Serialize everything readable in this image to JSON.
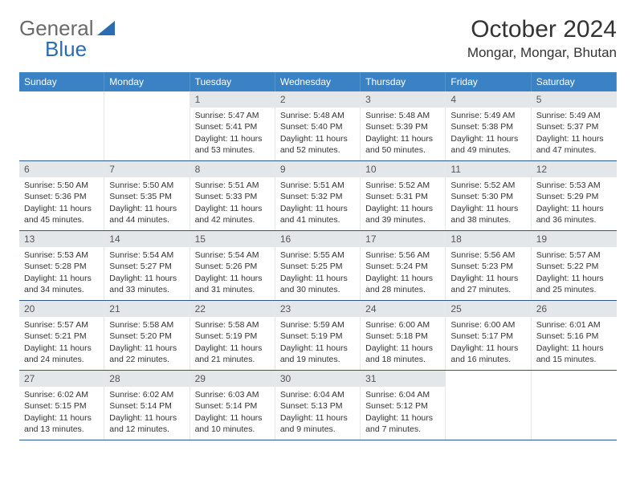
{
  "brand": {
    "part1": "General",
    "part2": "Blue"
  },
  "colors": {
    "header_bg": "#3b82c4",
    "header_text": "#ffffff",
    "daynum_bg": "#e4e7ea",
    "week_border": "#2b5a8a",
    "brand_gray": "#6a6a6a",
    "brand_blue": "#2a6db0"
  },
  "title": "October 2024",
  "location": "Mongar, Mongar, Bhutan",
  "day_names": [
    "Sunday",
    "Monday",
    "Tuesday",
    "Wednesday",
    "Thursday",
    "Friday",
    "Saturday"
  ],
  "weeks": [
    [
      {
        "empty": true
      },
      {
        "empty": true
      },
      {
        "day": "1",
        "sunrise": "Sunrise: 5:47 AM",
        "sunset": "Sunset: 5:41 PM",
        "daylight": "Daylight: 11 hours and 53 minutes."
      },
      {
        "day": "2",
        "sunrise": "Sunrise: 5:48 AM",
        "sunset": "Sunset: 5:40 PM",
        "daylight": "Daylight: 11 hours and 52 minutes."
      },
      {
        "day": "3",
        "sunrise": "Sunrise: 5:48 AM",
        "sunset": "Sunset: 5:39 PM",
        "daylight": "Daylight: 11 hours and 50 minutes."
      },
      {
        "day": "4",
        "sunrise": "Sunrise: 5:49 AM",
        "sunset": "Sunset: 5:38 PM",
        "daylight": "Daylight: 11 hours and 49 minutes."
      },
      {
        "day": "5",
        "sunrise": "Sunrise: 5:49 AM",
        "sunset": "Sunset: 5:37 PM",
        "daylight": "Daylight: 11 hours and 47 minutes."
      }
    ],
    [
      {
        "day": "6",
        "sunrise": "Sunrise: 5:50 AM",
        "sunset": "Sunset: 5:36 PM",
        "daylight": "Daylight: 11 hours and 45 minutes."
      },
      {
        "day": "7",
        "sunrise": "Sunrise: 5:50 AM",
        "sunset": "Sunset: 5:35 PM",
        "daylight": "Daylight: 11 hours and 44 minutes."
      },
      {
        "day": "8",
        "sunrise": "Sunrise: 5:51 AM",
        "sunset": "Sunset: 5:33 PM",
        "daylight": "Daylight: 11 hours and 42 minutes."
      },
      {
        "day": "9",
        "sunrise": "Sunrise: 5:51 AM",
        "sunset": "Sunset: 5:32 PM",
        "daylight": "Daylight: 11 hours and 41 minutes."
      },
      {
        "day": "10",
        "sunrise": "Sunrise: 5:52 AM",
        "sunset": "Sunset: 5:31 PM",
        "daylight": "Daylight: 11 hours and 39 minutes."
      },
      {
        "day": "11",
        "sunrise": "Sunrise: 5:52 AM",
        "sunset": "Sunset: 5:30 PM",
        "daylight": "Daylight: 11 hours and 38 minutes."
      },
      {
        "day": "12",
        "sunrise": "Sunrise: 5:53 AM",
        "sunset": "Sunset: 5:29 PM",
        "daylight": "Daylight: 11 hours and 36 minutes."
      }
    ],
    [
      {
        "day": "13",
        "sunrise": "Sunrise: 5:53 AM",
        "sunset": "Sunset: 5:28 PM",
        "daylight": "Daylight: 11 hours and 34 minutes."
      },
      {
        "day": "14",
        "sunrise": "Sunrise: 5:54 AM",
        "sunset": "Sunset: 5:27 PM",
        "daylight": "Daylight: 11 hours and 33 minutes."
      },
      {
        "day": "15",
        "sunrise": "Sunrise: 5:54 AM",
        "sunset": "Sunset: 5:26 PM",
        "daylight": "Daylight: 11 hours and 31 minutes."
      },
      {
        "day": "16",
        "sunrise": "Sunrise: 5:55 AM",
        "sunset": "Sunset: 5:25 PM",
        "daylight": "Daylight: 11 hours and 30 minutes."
      },
      {
        "day": "17",
        "sunrise": "Sunrise: 5:56 AM",
        "sunset": "Sunset: 5:24 PM",
        "daylight": "Daylight: 11 hours and 28 minutes."
      },
      {
        "day": "18",
        "sunrise": "Sunrise: 5:56 AM",
        "sunset": "Sunset: 5:23 PM",
        "daylight": "Daylight: 11 hours and 27 minutes."
      },
      {
        "day": "19",
        "sunrise": "Sunrise: 5:57 AM",
        "sunset": "Sunset: 5:22 PM",
        "daylight": "Daylight: 11 hours and 25 minutes."
      }
    ],
    [
      {
        "day": "20",
        "sunrise": "Sunrise: 5:57 AM",
        "sunset": "Sunset: 5:21 PM",
        "daylight": "Daylight: 11 hours and 24 minutes."
      },
      {
        "day": "21",
        "sunrise": "Sunrise: 5:58 AM",
        "sunset": "Sunset: 5:20 PM",
        "daylight": "Daylight: 11 hours and 22 minutes."
      },
      {
        "day": "22",
        "sunrise": "Sunrise: 5:58 AM",
        "sunset": "Sunset: 5:19 PM",
        "daylight": "Daylight: 11 hours and 21 minutes."
      },
      {
        "day": "23",
        "sunrise": "Sunrise: 5:59 AM",
        "sunset": "Sunset: 5:19 PM",
        "daylight": "Daylight: 11 hours and 19 minutes."
      },
      {
        "day": "24",
        "sunrise": "Sunrise: 6:00 AM",
        "sunset": "Sunset: 5:18 PM",
        "daylight": "Daylight: 11 hours and 18 minutes."
      },
      {
        "day": "25",
        "sunrise": "Sunrise: 6:00 AM",
        "sunset": "Sunset: 5:17 PM",
        "daylight": "Daylight: 11 hours and 16 minutes."
      },
      {
        "day": "26",
        "sunrise": "Sunrise: 6:01 AM",
        "sunset": "Sunset: 5:16 PM",
        "daylight": "Daylight: 11 hours and 15 minutes."
      }
    ],
    [
      {
        "day": "27",
        "sunrise": "Sunrise: 6:02 AM",
        "sunset": "Sunset: 5:15 PM",
        "daylight": "Daylight: 11 hours and 13 minutes."
      },
      {
        "day": "28",
        "sunrise": "Sunrise: 6:02 AM",
        "sunset": "Sunset: 5:14 PM",
        "daylight": "Daylight: 11 hours and 12 minutes."
      },
      {
        "day": "29",
        "sunrise": "Sunrise: 6:03 AM",
        "sunset": "Sunset: 5:14 PM",
        "daylight": "Daylight: 11 hours and 10 minutes."
      },
      {
        "day": "30",
        "sunrise": "Sunrise: 6:04 AM",
        "sunset": "Sunset: 5:13 PM",
        "daylight": "Daylight: 11 hours and 9 minutes."
      },
      {
        "day": "31",
        "sunrise": "Sunrise: 6:04 AM",
        "sunset": "Sunset: 5:12 PM",
        "daylight": "Daylight: 11 hours and 7 minutes."
      },
      {
        "empty": true
      },
      {
        "empty": true
      }
    ]
  ]
}
